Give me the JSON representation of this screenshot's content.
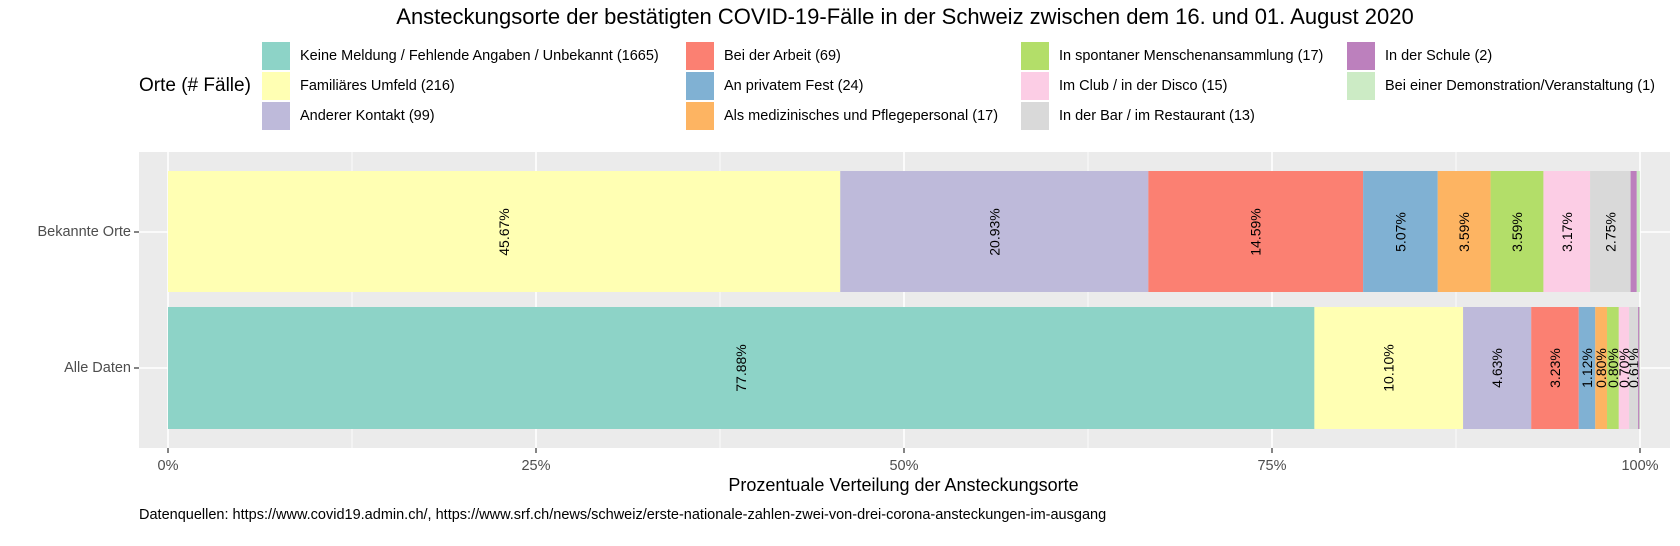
{
  "chart_data": {
    "type": "bar",
    "orientation": "horizontal",
    "stacked": true,
    "title": "Ansteckungsorte der bestätigten COVID-19-Fälle in der Schweiz zwischen dem 16. und 01. August 2020",
    "xlabel": "Prozentuale Verteilung der Ansteckungsorte",
    "ylabel": "",
    "xlim": [
      0,
      100
    ],
    "x_ticks": [
      "0%",
      "25%",
      "50%",
      "75%",
      "100%"
    ],
    "categories": [
      "Bekannte Orte",
      "Alle Daten"
    ],
    "legend_title": "Orte (# Fälle)",
    "legend_position": "top",
    "series": [
      {
        "name": "Keine Meldung / Fehlende Angaben / Unbekannt (1665)",
        "color": "#8DD3C7",
        "values": [
          0,
          77.88
        ],
        "labels": [
          "",
          "77.88%"
        ]
      },
      {
        "name": "Familiäres Umfeld (216)",
        "color": "#FFFFB3",
        "values": [
          45.67,
          10.1
        ],
        "labels": [
          "45.67%",
          "10.10%"
        ]
      },
      {
        "name": "Anderer Kontakt (99)",
        "color": "#BEBADA",
        "values": [
          20.93,
          4.63
        ],
        "labels": [
          "20.93%",
          "4.63%"
        ]
      },
      {
        "name": "Bei der Arbeit (69)",
        "color": "#FB8072",
        "values": [
          14.59,
          3.23
        ],
        "labels": [
          "14.59%",
          "3.23%"
        ]
      },
      {
        "name": "An privatem Fest (24)",
        "color": "#80B1D3",
        "values": [
          5.07,
          1.12
        ],
        "labels": [
          "5.07%",
          "1.12%"
        ]
      },
      {
        "name": "Als medizinisches und Pflegepersonal (17)",
        "color": "#FDB462",
        "values": [
          3.59,
          0.8
        ],
        "labels": [
          "3.59%",
          "0.80%"
        ]
      },
      {
        "name": "In spontaner Menschenansammlung (17)",
        "color": "#B3DE69",
        "values": [
          3.59,
          0.8
        ],
        "labels": [
          "3.59%",
          "0.80%"
        ]
      },
      {
        "name": "Im Club / in der Disco (15)",
        "color": "#FCCDE5",
        "values": [
          3.17,
          0.7
        ],
        "labels": [
          "3.17%",
          "0.70%"
        ]
      },
      {
        "name": "In der Bar / im Restaurant (13)",
        "color": "#D9D9D9",
        "values": [
          2.75,
          0.61
        ],
        "labels": [
          "2.75%",
          "0.61%"
        ]
      },
      {
        "name": "In der Schule (2)",
        "color": "#BC80BD",
        "values": [
          0.42,
          0.09
        ],
        "labels": [
          "",
          ""
        ]
      },
      {
        "name": "Bei einer Demonstration/Veranstaltung (1)",
        "color": "#CCEBC5",
        "values": [
          0.21,
          0.05
        ],
        "labels": [
          "",
          ""
        ]
      }
    ]
  },
  "caption": "Datenquellen: https://www.covid19.admin.ch/, https://www.srf.ch/news/schweiz/erste-nationale-zahlen-zwei-von-drei-corona-ansteckungen-im-ausgang",
  "colors": {
    "panel_background": "#EBEBEB",
    "grid": "#FFFFFF",
    "axis_text": "#4D4D4D"
  }
}
